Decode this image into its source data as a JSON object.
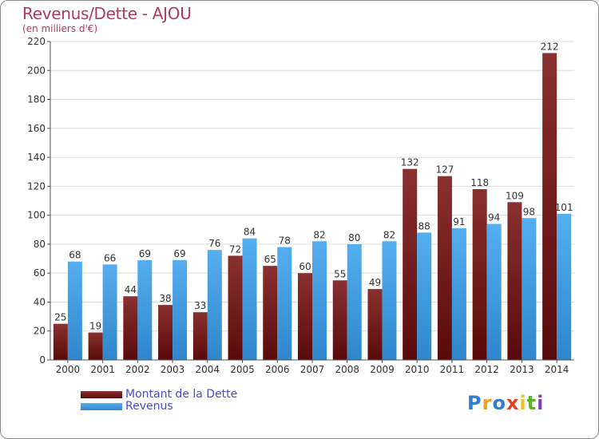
{
  "title": "Revenus/Dette - AJOU",
  "subtitle": "(en milliers d'€)",
  "logo": {
    "text": "Proxiti",
    "letters": [
      {
        "ch": "P",
        "color": "#2f7fd0"
      },
      {
        "ch": "r",
        "color": "#f0a020"
      },
      {
        "ch": "o",
        "color": "#2f7fd0"
      },
      {
        "ch": "x",
        "color": "#e04020"
      },
      {
        "ch": "i",
        "color": "#f0c020"
      },
      {
        "ch": "t",
        "color": "#60b030"
      },
      {
        "ch": "i",
        "color": "#8040b0"
      }
    ]
  },
  "chart_data": {
    "type": "bar",
    "title": "Revenus/Dette - AJOU",
    "subtitle": "(en milliers d'€)",
    "categories": [
      "2000",
      "2001",
      "2002",
      "2003",
      "2004",
      "2005",
      "2006",
      "2007",
      "2008",
      "2009",
      "2010",
      "2011",
      "2012",
      "2013",
      "2014"
    ],
    "series": [
      {
        "name": "Montant de la Dette",
        "color": "#7a1a1a",
        "values": [
          25,
          19,
          44,
          38,
          33,
          72,
          65,
          60,
          55,
          49,
          132,
          127,
          118,
          109,
          212
        ]
      },
      {
        "name": "Revenus",
        "color": "#3f9be0",
        "values": [
          68,
          66,
          69,
          69,
          76,
          84,
          78,
          82,
          80,
          82,
          88,
          91,
          94,
          98,
          101
        ]
      }
    ],
    "ylim": [
      0,
      220
    ],
    "yticks": [
      0,
      20,
      40,
      60,
      80,
      100,
      120,
      140,
      160,
      180,
      200,
      220
    ],
    "grid": true,
    "legend_position": "bottom-left"
  }
}
